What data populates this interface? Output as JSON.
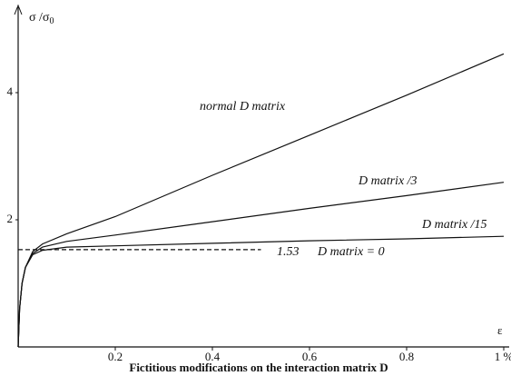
{
  "chart_data": {
    "type": "line",
    "title": "Fictitious modifications on the interaction matrix D",
    "y_label": "σ /σ0",
    "x_label": "ε",
    "xlim": [
      0,
      1.0
    ],
    "ylim": [
      0,
      5.3
    ],
    "xticks": [
      0.2,
      0.4,
      0.6,
      0.8,
      {
        "value": 1.0,
        "label": "1 %"
      }
    ],
    "yticks": [
      2,
      4
    ],
    "series": [
      {
        "name": "normal D matrix",
        "color": "#111111",
        "dashed": false,
        "x": [
          0,
          0.003,
          0.008,
          0.015,
          0.03,
          0.05,
          0.1,
          0.2,
          0.4,
          0.6,
          0.8,
          1.0
        ],
        "values": [
          0,
          0.6,
          1.0,
          1.25,
          1.5,
          1.62,
          1.78,
          2.05,
          2.7,
          3.33,
          3.96,
          4.61
        ]
      },
      {
        "name": "D matrix /3",
        "color": "#111111",
        "dashed": false,
        "x": [
          0,
          0.003,
          0.008,
          0.015,
          0.03,
          0.05,
          0.1,
          0.2,
          0.4,
          0.6,
          0.8,
          1.0
        ],
        "values": [
          0,
          0.6,
          1.0,
          1.25,
          1.47,
          1.57,
          1.66,
          1.76,
          1.97,
          2.18,
          2.38,
          2.59
        ]
      },
      {
        "name": "D matrix /15",
        "color": "#111111",
        "dashed": false,
        "x": [
          0,
          0.003,
          0.008,
          0.015,
          0.03,
          0.05,
          0.1,
          0.2,
          0.4,
          0.6,
          0.8,
          1.0
        ],
        "values": [
          0,
          0.6,
          1.0,
          1.25,
          1.45,
          1.52,
          1.57,
          1.59,
          1.63,
          1.67,
          1.7,
          1.74
        ]
      },
      {
        "name": "D matrix = 0",
        "color": "#111111",
        "dashed": true,
        "x": [
          0,
          0.5
        ],
        "values": [
          1.53,
          1.53
        ]
      }
    ]
  }
}
